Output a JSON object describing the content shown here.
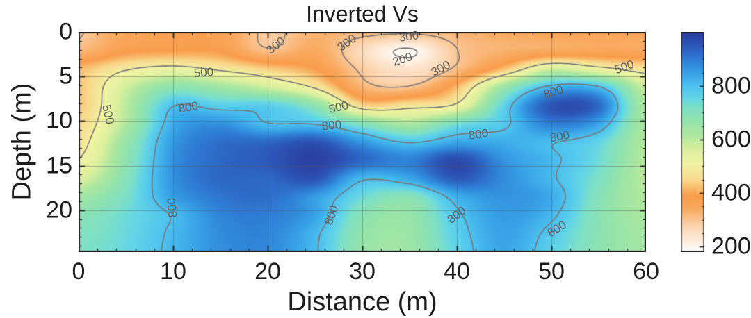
{
  "title": "Inverted Vs",
  "axes": {
    "x": {
      "label": "Distance (m)",
      "range": [
        0,
        60
      ],
      "tick_values": [
        0,
        10,
        20,
        30,
        40,
        50,
        60
      ],
      "tick_labels": [
        "0",
        "10",
        "20",
        "30",
        "40",
        "50",
        "60"
      ],
      "minor_step": 2
    },
    "y": {
      "label": "Depth (m)",
      "range": [
        0,
        24.7
      ],
      "tick_values": [
        0,
        5,
        10,
        15,
        20
      ],
      "tick_labels": [
        "0",
        "5",
        "10",
        "15",
        "20"
      ],
      "minor_step": 1
    }
  },
  "colorbar": {
    "range": [
      182,
      1002
    ],
    "tick_values": [
      200,
      400,
      600,
      800
    ],
    "tick_labels": [
      "200",
      "400",
      "600",
      "800"
    ],
    "minor_step": 50
  },
  "chart_data": {
    "type": "heatmap",
    "subtype": "filled-contour-section",
    "title": "Inverted Vs",
    "xlabel": "Distance (m)",
    "ylabel": "Depth (m)",
    "x_range": [
      0,
      60
    ],
    "depth_range": [
      0,
      24.7
    ],
    "color_range": [
      182,
      1002
    ],
    "grid_on": true,
    "grid_x": [
      0,
      5,
      10,
      15,
      20,
      25,
      30,
      35,
      40,
      45,
      50,
      55,
      60
    ],
    "grid_depth": [
      0,
      2.06,
      4.12,
      6.17,
      8.23,
      10.29,
      12.35,
      14.41,
      16.47,
      18.52,
      20.58,
      22.64,
      24.7
    ],
    "values_vs_mps": [
      [
        295,
        355,
        370,
        365,
        290,
        330,
        315,
        308,
        322,
        342,
        355,
        360,
        352
      ],
      [
        320,
        380,
        392,
        385,
        308,
        345,
        258,
        193,
        298,
        330,
        345,
        355,
        350
      ],
      [
        420,
        490,
        520,
        485,
        440,
        392,
        288,
        242,
        310,
        425,
        570,
        520,
        468
      ],
      [
        430,
        575,
        680,
        640,
        575,
        488,
        326,
        305,
        420,
        650,
        815,
        805,
        578
      ],
      [
        430,
        600,
        795,
        770,
        770,
        680,
        455,
        472,
        512,
        760,
        955,
        925,
        618
      ],
      [
        452,
        615,
        832,
        870,
        802,
        792,
        700,
        622,
        728,
        785,
        898,
        848,
        618
      ],
      [
        470,
        660,
        858,
        918,
        928,
        958,
        862,
        792,
        838,
        830,
        806,
        758,
        610
      ],
      [
        502,
        678,
        868,
        928,
        950,
        995,
        928,
        892,
        975,
        868,
        814,
        740,
        606
      ],
      [
        558,
        700,
        868,
        928,
        928,
        958,
        812,
        842,
        948,
        878,
        810,
        718,
        600
      ],
      [
        638,
        722,
        852,
        908,
        918,
        858,
        742,
        695,
        828,
        868,
        836,
        700,
        610
      ],
      [
        688,
        740,
        806,
        888,
        898,
        848,
        692,
        662,
        788,
        858,
        814,
        690,
        620
      ],
      [
        708,
        746,
        812,
        878,
        888,
        815,
        672,
        655,
        772,
        848,
        782,
        688,
        630
      ],
      [
        718,
        752,
        816,
        874,
        884,
        808,
        665,
        650,
        762,
        842,
        768,
        684,
        634
      ]
    ],
    "contour_levels": [
      200,
      300,
      500,
      800
    ],
    "contour_line_color": "#757575",
    "contour_labels": [
      {
        "text": "300",
        "x": 20.9,
        "depth": 1.55,
        "angle": -38
      },
      {
        "text": "300",
        "x": 28.4,
        "depth": 1.25,
        "angle": -35
      },
      {
        "text": "300",
        "x": 34.9,
        "depth": 0.55,
        "angle": -8
      },
      {
        "text": "200",
        "x": 34.3,
        "depth": 3.1,
        "angle": -18
      },
      {
        "text": "300",
        "x": 38.3,
        "depth": 4.1,
        "angle": -28
      },
      {
        "text": "500",
        "x": 13.2,
        "depth": 4.6,
        "angle": -4
      },
      {
        "text": "500",
        "x": 3.1,
        "depth": 9.3,
        "angle": 78
      },
      {
        "text": "500",
        "x": 27.5,
        "depth": 8.5,
        "angle": -14
      },
      {
        "text": "500",
        "x": 57.7,
        "depth": 4.0,
        "angle": -20
      },
      {
        "text": "800",
        "x": 11.6,
        "depth": 8.5,
        "angle": -10
      },
      {
        "text": "800",
        "x": 26.8,
        "depth": 10.55,
        "angle": -6
      },
      {
        "text": "800",
        "x": 50.2,
        "depth": 6.75,
        "angle": -16
      },
      {
        "text": "800",
        "x": 42.3,
        "depth": 11.55,
        "angle": -8
      },
      {
        "text": "800",
        "x": 50.9,
        "depth": 11.75,
        "angle": -10
      },
      {
        "text": "800",
        "x": 9.9,
        "depth": 19.7,
        "angle": -95
      },
      {
        "text": "800",
        "x": 26.8,
        "depth": 20.6,
        "angle": -70
      },
      {
        "text": "800",
        "x": 40.0,
        "depth": 20.6,
        "angle": -38
      },
      {
        "text": "800",
        "x": 50.6,
        "depth": 22.1,
        "angle": -32
      }
    ],
    "colormap": [
      [
        182,
        "#ffffff"
      ],
      [
        220,
        "#fdeede"
      ],
      [
        280,
        "#fbd2ac"
      ],
      [
        340,
        "#f9ab62"
      ],
      [
        390,
        "#f89c4a"
      ],
      [
        450,
        "#f8d88c"
      ],
      [
        505,
        "#f1f2a2"
      ],
      [
        560,
        "#ddf09d"
      ],
      [
        620,
        "#abe79f"
      ],
      [
        680,
        "#8ee2af"
      ],
      [
        725,
        "#7bdfc9"
      ],
      [
        755,
        "#63d5e7"
      ],
      [
        800,
        "#4cc1ef"
      ],
      [
        852,
        "#36a0e6"
      ],
      [
        903,
        "#2e7ad4"
      ],
      [
        955,
        "#2c55b8"
      ],
      [
        1002,
        "#2b3e9e"
      ]
    ],
    "frame_color": "#1f1f1f",
    "gridline_color": "rgba(85,85,85,0.42)"
  }
}
